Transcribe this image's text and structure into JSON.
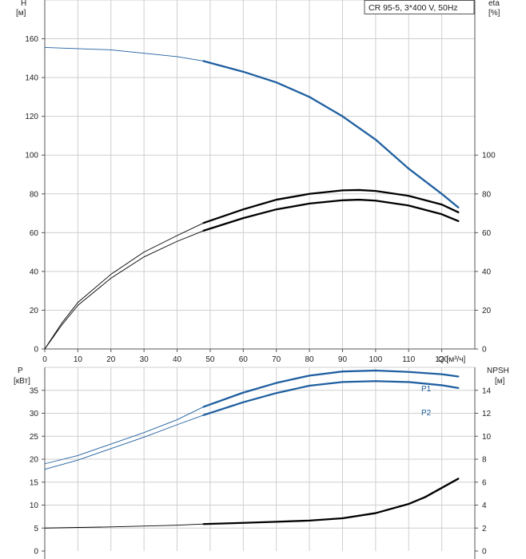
{
  "colors": {
    "blue": "#1f5fa0",
    "black": "#000000",
    "grid": "#cfcfcf",
    "axis": "#555555"
  },
  "chart_data": [
    {
      "type": "line",
      "title": "CR 95-5, 3*400 V, 50Hz",
      "xlabel": "Q [м³/ч]",
      "x_tick_labels": [
        "0",
        "10",
        "20",
        "30",
        "40",
        "50",
        "60",
        "70",
        "80",
        "90",
        "100",
        "110",
        "120"
      ],
      "xlim": [
        0,
        130
      ],
      "left_axis": {
        "label_line1": "H",
        "label_line2": "[м]",
        "ylim": [
          0,
          180
        ],
        "ticks": [
          0,
          20,
          40,
          60,
          80,
          100,
          120,
          140,
          160
        ]
      },
      "right_axis": {
        "label_line1": "eta",
        "label_line2": "[%]",
        "ylim": [
          0,
          180
        ],
        "ticks": [
          0,
          20,
          40,
          60,
          80,
          100
        ]
      },
      "series": [
        {
          "name": "H",
          "color": "#1f5fa0",
          "bold_from": 48,
          "x": [
            0,
            20,
            40,
            48,
            60,
            70,
            80,
            90,
            100,
            110,
            120,
            125
          ],
          "y": [
            155.5,
            154.3,
            150.8,
            148.5,
            143,
            137.5,
            130,
            120,
            108,
            93,
            80,
            73
          ]
        },
        {
          "name": "eta1",
          "color": "#000000",
          "bold_from": 48,
          "x": [
            0,
            5,
            10,
            20,
            30,
            40,
            48,
            60,
            70,
            80,
            90,
            95,
            100,
            110,
            120,
            125
          ],
          "y": [
            0,
            13,
            24,
            38.5,
            50,
            58.5,
            65,
            72,
            77,
            80,
            81.8,
            82,
            81.5,
            79,
            74.5,
            70.5
          ]
        },
        {
          "name": "eta2",
          "color": "#000000",
          "bold_from": 48,
          "x": [
            0,
            5,
            10,
            20,
            30,
            40,
            48,
            60,
            70,
            80,
            90,
            95,
            100,
            110,
            120,
            125
          ],
          "y": [
            0,
            12,
            22.5,
            36.5,
            47.5,
            55.5,
            61,
            67.5,
            72,
            75,
            76.7,
            77,
            76.5,
            74,
            69.5,
            66
          ]
        }
      ]
    },
    {
      "type": "line",
      "xlabel": "",
      "xlim": [
        0,
        130
      ],
      "left_axis": {
        "label_line1": "P",
        "label_line2": "[кВт]",
        "ylim": [
          0,
          40
        ],
        "ticks": [
          0,
          5,
          10,
          15,
          20,
          25,
          30,
          35
        ]
      },
      "right_axis": {
        "label_line1": "NPSH",
        "label_line2": "[м]",
        "ylim": [
          0,
          16
        ],
        "ticks": [
          0,
          2,
          4,
          6,
          8,
          10,
          12,
          14
        ]
      },
      "series": [
        {
          "name": "P1",
          "label": "P1",
          "axis": "left",
          "color": "#1f5fa0",
          "bold_from": 48,
          "x": [
            0,
            10,
            20,
            30,
            40,
            48,
            60,
            70,
            80,
            90,
            100,
            110,
            120,
            125
          ],
          "y": [
            19,
            20.8,
            23.3,
            25.8,
            28.6,
            31.4,
            34.5,
            36.6,
            38.2,
            39.1,
            39.3,
            39,
            38.5,
            38
          ]
        },
        {
          "name": "P2",
          "label": "P2",
          "axis": "left",
          "color": "#1f5fa0",
          "bold_from": 48,
          "x": [
            0,
            10,
            20,
            30,
            40,
            48,
            60,
            70,
            80,
            90,
            100,
            110,
            120,
            125
          ],
          "y": [
            17.8,
            19.8,
            22.3,
            24.8,
            27.5,
            29.6,
            32.4,
            34.4,
            36,
            36.8,
            37,
            36.8,
            36.1,
            35.5
          ]
        },
        {
          "name": "NPSH",
          "axis": "right",
          "color": "#000000",
          "bold_from": 48,
          "x": [
            0,
            20,
            40,
            48,
            60,
            70,
            80,
            90,
            100,
            110,
            115,
            120,
            125
          ],
          "y": [
            2,
            2.1,
            2.25,
            2.35,
            2.45,
            2.55,
            2.65,
            2.85,
            3.3,
            4.1,
            4.7,
            5.5,
            6.3
          ]
        }
      ]
    }
  ]
}
